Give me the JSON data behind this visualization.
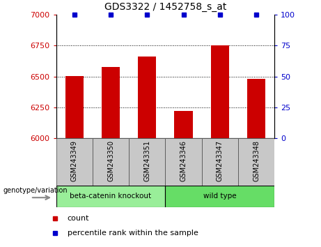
{
  "title": "GDS3322 / 1452758_s_at",
  "samples": [
    "GSM243349",
    "GSM243350",
    "GSM243351",
    "GSM243346",
    "GSM243347",
    "GSM243348"
  ],
  "counts": [
    6505,
    6580,
    6660,
    6220,
    6755,
    6480
  ],
  "percentile_ranks": [
    100,
    100,
    100,
    100,
    100,
    100
  ],
  "ylim_left": [
    6000,
    7000
  ],
  "yticks_left": [
    6000,
    6250,
    6500,
    6750,
    7000
  ],
  "ylim_right": [
    0,
    100
  ],
  "yticks_right": [
    0,
    25,
    50,
    75,
    100
  ],
  "bar_color": "#cc0000",
  "percentile_color": "#0000cc",
  "group1_label": "beta-catenin knockout",
  "group2_label": "wild type",
  "group1_color": "#99ee99",
  "group2_color": "#66dd66",
  "legend_count_label": "count",
  "legend_percentile_label": "percentile rank within the sample",
  "genotype_label": "genotype/variation",
  "xlabel_color": "#cc0000",
  "ylabel_right_color": "#0000cc",
  "tick_area_color": "#c8c8c8",
  "bar_width": 0.5
}
